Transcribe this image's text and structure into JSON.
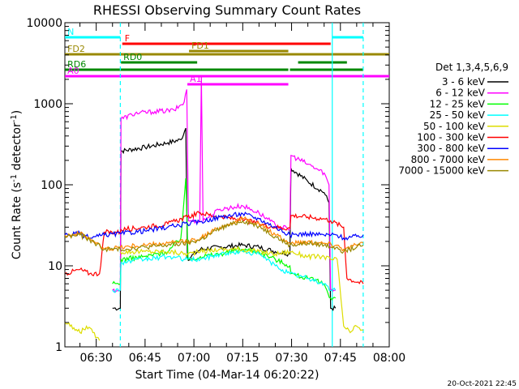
{
  "chart_data": {
    "type": "line",
    "title": "RHESSI Observing Summary Count Rates",
    "xlabel": "Start Time (04-Mar-14 06:20:22)",
    "ylabel": "Count Rate (s",
    "ylabel_sup": "-1",
    "ylabel_tail": " detector",
    "ylabel_end": ")",
    "yscale": "log",
    "ylim": [
      1,
      10000
    ],
    "xlim_minutes": [
      20.37,
      120
    ],
    "x_ticks": [
      {
        "m": 30,
        "label": "06:30"
      },
      {
        "m": 45,
        "label": "06:45"
      },
      {
        "m": 60,
        "label": "07:00"
      },
      {
        "m": 75,
        "label": "07:15"
      },
      {
        "m": 90,
        "label": "07:30"
      },
      {
        "m": 105,
        "label": "07:45"
      },
      {
        "m": 120,
        "label": "08:00"
      }
    ],
    "y_ticks": [
      {
        "v": 1,
        "label": "1"
      },
      {
        "v": 10,
        "label": "10"
      },
      {
        "v": 100,
        "label": "100"
      },
      {
        "v": 1000,
        "label": "1000"
      },
      {
        "v": 10000,
        "label": "10000"
      }
    ],
    "legend_title": "Det 1,3,4,5,6,9",
    "series": [
      {
        "name": "3 - 6 keV",
        "color": "#000000",
        "points": [
          [
            20.4,
            null
          ],
          [
            35,
            3
          ],
          [
            37.4,
            3
          ],
          [
            37.6,
            260
          ],
          [
            45,
            290
          ],
          [
            52,
            330
          ],
          [
            56,
            360
          ],
          [
            57.5,
            500
          ],
          [
            58,
            12
          ],
          [
            62,
            16
          ],
          [
            68,
            17
          ],
          [
            75,
            18
          ],
          [
            80,
            17
          ],
          [
            85,
            15
          ],
          [
            89.5,
            14
          ],
          [
            89.8,
            160
          ],
          [
            95,
            110
          ],
          [
            100,
            80
          ],
          [
            101.5,
            60
          ],
          [
            102,
            3
          ],
          [
            103.5,
            3
          ],
          [
            103.8,
            null
          ]
        ]
      },
      {
        "name": "6 - 12 keV",
        "color": "#ff00ff",
        "points": [
          [
            20.4,
            null
          ],
          [
            35,
            5
          ],
          [
            37.4,
            5
          ],
          [
            37.6,
            650
          ],
          [
            42,
            760
          ],
          [
            48,
            800
          ],
          [
            54,
            830
          ],
          [
            57,
            1050
          ],
          [
            57.8,
            1500
          ],
          [
            58.3,
            36
          ],
          [
            61.8,
            36
          ],
          [
            62.3,
            2200
          ],
          [
            62.8,
            36
          ],
          [
            68,
            50
          ],
          [
            75,
            55
          ],
          [
            80,
            45
          ],
          [
            85,
            32
          ],
          [
            89.5,
            28
          ],
          [
            89.8,
            230
          ],
          [
            95,
            180
          ],
          [
            100,
            140
          ],
          [
            101.5,
            100
          ],
          [
            102,
            5
          ],
          [
            103.5,
            5
          ],
          [
            103.8,
            null
          ]
        ]
      },
      {
        "name": "12 - 25 keV",
        "color": "#00ff00",
        "points": [
          [
            20.4,
            null
          ],
          [
            35,
            6
          ],
          [
            37.4,
            6
          ],
          [
            37.6,
            12
          ],
          [
            45,
            13
          ],
          [
            52,
            15
          ],
          [
            56,
            22
          ],
          [
            57.5,
            120
          ],
          [
            58.2,
            12
          ],
          [
            62,
            13
          ],
          [
            68,
            14
          ],
          [
            75,
            16
          ],
          [
            80,
            15
          ],
          [
            85,
            12
          ],
          [
            89.5,
            10
          ],
          [
            89.8,
            8
          ],
          [
            95,
            7
          ],
          [
            100,
            6
          ],
          [
            102,
            4
          ],
          [
            103.5,
            4
          ],
          [
            103.8,
            null
          ]
        ]
      },
      {
        "name": "25 - 50 keV",
        "color": "#00ffff",
        "points": [
          [
            20.4,
            null
          ],
          [
            35,
            5
          ],
          [
            37.4,
            5
          ],
          [
            37.6,
            11
          ],
          [
            45,
            12
          ],
          [
            52,
            13
          ],
          [
            58,
            12
          ],
          [
            62,
            12
          ],
          [
            68,
            14
          ],
          [
            75,
            15
          ],
          [
            80,
            14
          ],
          [
            85,
            10
          ],
          [
            89.5,
            8
          ],
          [
            95,
            7
          ],
          [
            100,
            6
          ],
          [
            102,
            5
          ],
          [
            103.5,
            5
          ],
          [
            103.8,
            null
          ]
        ]
      },
      {
        "name": "50 - 100 keV",
        "color": "#dddd00",
        "points": [
          [
            20.4,
            2
          ],
          [
            22,
            1.8
          ],
          [
            25,
            1.5
          ],
          [
            27,
            1.8
          ],
          [
            29,
            1.5
          ],
          [
            31,
            1.2
          ],
          [
            33,
            null
          ],
          [
            35,
            null
          ],
          [
            37.4,
            15
          ],
          [
            45,
            15
          ],
          [
            52,
            15
          ],
          [
            58,
            14
          ],
          [
            62,
            15
          ],
          [
            68,
            16
          ],
          [
            75,
            16
          ],
          [
            80,
            15
          ],
          [
            85,
            14
          ],
          [
            89.5,
            15
          ],
          [
            95,
            13
          ],
          [
            100,
            13
          ],
          [
            102,
            12
          ],
          [
            104,
            12
          ],
          [
            106,
            1.8
          ],
          [
            108,
            1.5
          ],
          [
            110,
            1.8
          ],
          [
            112,
            1.6
          ]
        ]
      },
      {
        "name": "100 - 300 keV",
        "color": "#ff0000",
        "points": [
          [
            20.4,
            8
          ],
          [
            25,
            9
          ],
          [
            28,
            8
          ],
          [
            31,
            8
          ],
          [
            32.5,
            26
          ],
          [
            37.4,
            26
          ],
          [
            37.6,
            28
          ],
          [
            45,
            30
          ],
          [
            52,
            33
          ],
          [
            58,
            40
          ],
          [
            62,
            45
          ],
          [
            68,
            40
          ],
          [
            75,
            37
          ],
          [
            80,
            33
          ],
          [
            85,
            30
          ],
          [
            89.5,
            29
          ],
          [
            89.8,
            42
          ],
          [
            95,
            40
          ],
          [
            100,
            38
          ],
          [
            102,
            36
          ],
          [
            106,
            30
          ],
          [
            107,
            7
          ],
          [
            112,
            6
          ]
        ]
      },
      {
        "name": "300 - 800 keV",
        "color": "#0000ff",
        "points": [
          [
            20.4,
            24
          ],
          [
            25,
            25
          ],
          [
            28,
            22
          ],
          [
            32.5,
            24
          ],
          [
            37.4,
            25
          ],
          [
            45,
            27
          ],
          [
            52,
            30
          ],
          [
            58,
            33
          ],
          [
            62,
            35
          ],
          [
            68,
            40
          ],
          [
            75,
            44
          ],
          [
            80,
            38
          ],
          [
            85,
            30
          ],
          [
            89.5,
            24
          ],
          [
            95,
            25
          ],
          [
            100,
            24
          ],
          [
            104,
            24
          ],
          [
            106,
            22
          ],
          [
            110,
            23
          ],
          [
            112,
            24
          ]
        ]
      },
      {
        "name": "800 - 7000 keV",
        "color": "#ff8800",
        "points": [
          [
            20.4,
            24
          ],
          [
            25,
            25
          ],
          [
            28,
            22
          ],
          [
            32.5,
            16
          ],
          [
            37.4,
            17
          ],
          [
            45,
            18
          ],
          [
            52,
            19
          ],
          [
            58,
            20
          ],
          [
            62,
            22
          ],
          [
            68,
            30
          ],
          [
            75,
            38
          ],
          [
            80,
            33
          ],
          [
            85,
            24
          ],
          [
            89.5,
            19
          ],
          [
            95,
            20
          ],
          [
            100,
            19
          ],
          [
            104,
            18
          ],
          [
            106,
            16
          ],
          [
            110,
            18
          ],
          [
            112,
            19
          ]
        ]
      },
      {
        "name": "7000 - 15000 keV",
        "color": "#998800",
        "points": [
          [
            20.4,
            23
          ],
          [
            25,
            24
          ],
          [
            28,
            21
          ],
          [
            32.5,
            16
          ],
          [
            37.4,
            16
          ],
          [
            45,
            17
          ],
          [
            52,
            18
          ],
          [
            58,
            19
          ],
          [
            62,
            21
          ],
          [
            68,
            29
          ],
          [
            75,
            36
          ],
          [
            80,
            31
          ],
          [
            85,
            23
          ],
          [
            89.5,
            18
          ],
          [
            95,
            19
          ],
          [
            100,
            18
          ],
          [
            104,
            17
          ],
          [
            106,
            15
          ],
          [
            110,
            17
          ],
          [
            112,
            18
          ]
        ]
      }
    ],
    "flag_bars": [
      {
        "label": "N",
        "color": "#00ffff",
        "log_y": 3.82,
        "segments": [
          [
            20.4,
            37.4
          ],
          [
            102.5,
            112
          ]
        ]
      },
      {
        "label": "F",
        "color": "#ff0000",
        "log_y": 3.74,
        "segments": [
          [
            38,
            102
          ]
        ]
      },
      {
        "label": "FD1",
        "color": "#998800",
        "log_y": 3.65,
        "segments": [
          [
            58.5,
            89
          ]
        ]
      },
      {
        "label": "FD2",
        "color": "#998800",
        "log_y": 3.61,
        "segments": [
          [
            20.4,
            120
          ]
        ]
      },
      {
        "label": "RD0",
        "color": "#008800",
        "log_y": 3.51,
        "segments": [
          [
            37.6,
            61
          ],
          [
            92,
            107
          ]
        ]
      },
      {
        "label": "RD6",
        "color": "#008800",
        "log_y": 3.42,
        "segments": [
          [
            20.4,
            89
          ],
          [
            89.5,
            112
          ]
        ]
      },
      {
        "label": "A0",
        "color": "#ff00ff",
        "log_y": 3.34,
        "segments": [
          [
            20.4,
            120
          ]
        ]
      },
      {
        "label": "A1",
        "color": "#ff00ff",
        "log_y": 3.24,
        "segments": [
          [
            58,
            89
          ]
        ]
      }
    ],
    "vlines": [
      {
        "m": 37.4,
        "color": "#00ffff",
        "dashed": true
      },
      {
        "m": 102.5,
        "color": "#00ffff",
        "dashed": false
      },
      {
        "m": 112,
        "color": "#00ffff",
        "dashed": true
      }
    ],
    "date_stamp": "20-Oct-2021 22:45"
  }
}
